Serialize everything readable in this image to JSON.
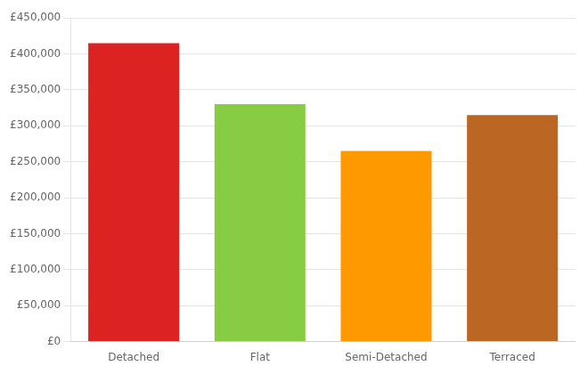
{
  "chart_data": {
    "type": "bar",
    "categories": [
      "Detached",
      "Flat",
      "Semi-Detached",
      "Terraced"
    ],
    "values": [
      415000,
      330000,
      265000,
      315000
    ],
    "colors": [
      "#dd2222",
      "#88cc44",
      "#ff9900",
      "#bb6622"
    ],
    "ylim": [
      0,
      450000
    ],
    "yticks": [
      {
        "value": 0,
        "label": "£0"
      },
      {
        "value": 50000,
        "label": "£50,000"
      },
      {
        "value": 100000,
        "label": "£100,000"
      },
      {
        "value": 150000,
        "label": "£150,000"
      },
      {
        "value": 200000,
        "label": "£200,000"
      },
      {
        "value": 250000,
        "label": "£250,000"
      },
      {
        "value": 300000,
        "label": "£300,000"
      },
      {
        "value": 350000,
        "label": "£350,000"
      },
      {
        "value": 400000,
        "label": "£400,000"
      },
      {
        "value": 450000,
        "label": "£450,000"
      }
    ],
    "grid": true
  }
}
